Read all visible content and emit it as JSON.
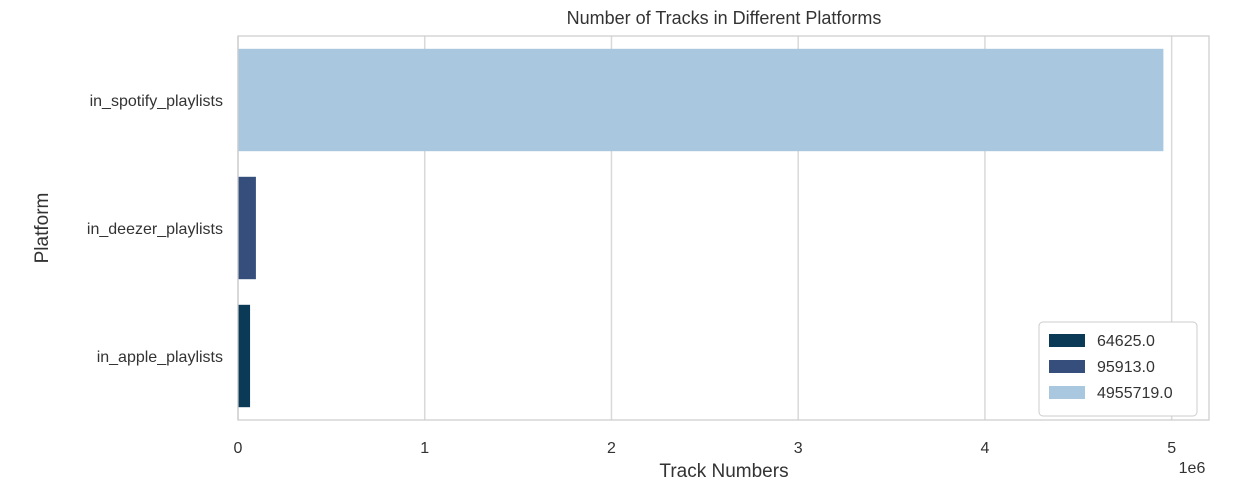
{
  "chart_data": {
    "type": "bar",
    "orientation": "horizontal",
    "title": "Number of Tracks in Different Platforms",
    "xlabel": "Track Numbers",
    "ylabel": "Platform",
    "x_scale_label": "1e6",
    "xlim": [
      0,
      5200000
    ],
    "x_ticks": [
      0,
      1000000,
      2000000,
      3000000,
      4000000,
      5000000
    ],
    "x_tick_labels": [
      "0",
      "1",
      "2",
      "3",
      "4",
      "5"
    ],
    "grid": true,
    "legend_position": "lower-right",
    "categories": [
      "in_spotify_playlists",
      "in_deezer_playlists",
      "in_apple_playlists"
    ],
    "values": [
      4955719,
      95913,
      64625
    ],
    "colors": [
      "#a9c8df",
      "#354e7c",
      "#0a3a55"
    ],
    "legend": [
      {
        "label": "64625.0",
        "color": "#0a3a55"
      },
      {
        "label": "95913.0",
        "color": "#354e7c"
      },
      {
        "label": "4955719.0",
        "color": "#a9c8df"
      }
    ]
  }
}
